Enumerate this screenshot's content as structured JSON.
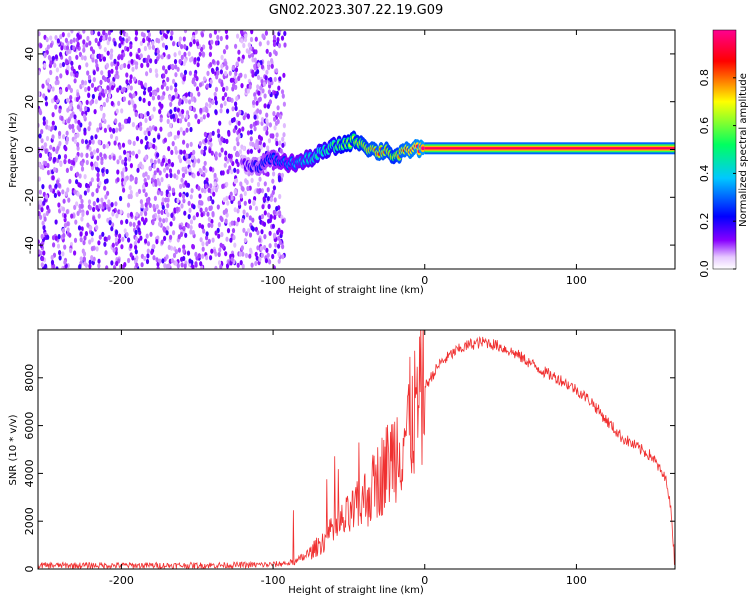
{
  "title": "GN02.2023.307.22.19.G09",
  "chart_data": [
    {
      "type": "heatmap",
      "xlabel": "Height of straight line (km)",
      "ylabel": "Frequency (Hz)",
      "xlim": [
        -255,
        165
      ],
      "ylim": [
        -50,
        50
      ],
      "x_ticks": [
        -200,
        -100,
        0,
        100
      ],
      "y_ticks": [
        -40,
        -20,
        0,
        20,
        40
      ],
      "colorbar": {
        "label": "Normalized spectral amplitude",
        "range": [
          0,
          1
        ],
        "ticks": [
          "0.0",
          "0.2",
          "0.4",
          "0.6",
          "0.8"
        ],
        "colormap": [
          "#ffffff",
          "#e6c8ff",
          "#8800ff",
          "#0000ff",
          "#00c8ff",
          "#00ff60",
          "#ffff00",
          "#ff0000",
          "#ff0090"
        ]
      },
      "noise_region": {
        "x": [
          -255,
          -92
        ],
        "amplitude": 0.1
      },
      "ridge": {
        "x": [
          -120,
          -110,
          -100,
          -90,
          -80,
          -70,
          -60,
          -50,
          -45,
          -40,
          -35,
          -30,
          -25,
          -20,
          -15,
          -10,
          -5,
          0,
          165
        ],
        "frequency": [
          -6,
          -7,
          -4,
          -6,
          -5,
          -2,
          1,
          3,
          4,
          2,
          0,
          -1,
          0,
          -3,
          -2,
          0,
          0.5,
          0.5,
          0.5
        ],
        "amplitude": [
          0.15,
          0.25,
          0.3,
          0.35,
          0.4,
          0.5,
          0.55,
          0.65,
          0.7,
          0.75,
          0.8,
          0.85,
          0.8,
          0.7,
          0.85,
          0.9,
          0.95,
          1.0,
          1.0
        ]
      }
    },
    {
      "type": "line",
      "xlabel": "Height of straight line (km)",
      "ylabel": "SNR (10 * v/v)",
      "xlim": [
        -255,
        165
      ],
      "ylim": [
        0,
        10000
      ],
      "x_ticks": [
        -200,
        -100,
        0,
        100
      ],
      "y_ticks": [
        0,
        2000,
        4000,
        6000,
        8000
      ],
      "color": "#f03030",
      "series": [
        {
          "x": [
            -255,
            -200,
            -150,
            -100,
            -85,
            -75,
            -65,
            -55,
            -45,
            -35,
            -25,
            -15,
            -5,
            0,
            10,
            20,
            30,
            40,
            50,
            60,
            70,
            80,
            90,
            100,
            110,
            120,
            130,
            140,
            150,
            160,
            163,
            165
          ],
          "values": [
            150,
            150,
            150,
            180,
            300,
            700,
            1300,
            1900,
            2500,
            3300,
            4300,
            5500,
            6700,
            7600,
            8600,
            9100,
            9400,
            9500,
            9300,
            9000,
            8600,
            8200,
            7900,
            7500,
            7000,
            6200,
            5500,
            5100,
            4700,
            3600,
            2000,
            0
          ]
        }
      ]
    }
  ]
}
